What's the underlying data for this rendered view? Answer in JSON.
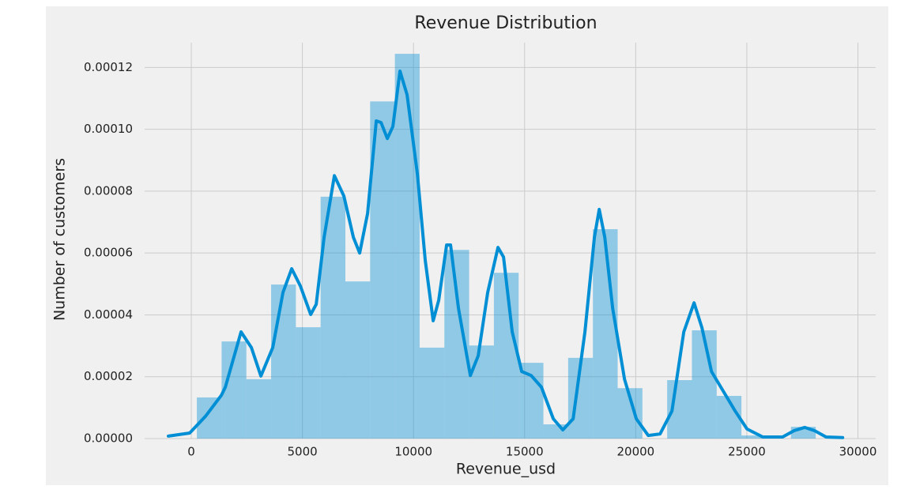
{
  "chart_data": {
    "type": "histogram",
    "title": "Revenue Distribution",
    "x_label": "Revenue_usd",
    "y_label": "Number of customers",
    "bins": [
      250,
      1364,
      2478,
      3592,
      4706,
      5820,
      6934,
      8048,
      9162,
      10276,
      11390,
      12504,
      13618,
      14732,
      15846,
      16960,
      18074,
      19188,
      20302,
      21416,
      22530,
      23644,
      24758,
      25872,
      26986,
      28100
    ],
    "values": [
      1.33e-05,
      3.14e-05,
      1.92e-05,
      4.98e-05,
      3.6e-05,
      7.82e-05,
      5.08e-05,
      0.000109,
      0.0001244,
      2.94e-05,
      6.1e-05,
      3.01e-05,
      5.36e-05,
      2.45e-05,
      4.6e-06,
      2.61e-05,
      6.77e-05,
      1.63e-05,
      0,
      1.89e-05,
      3.5e-05,
      1.38e-05,
      1e-06,
      0,
      3.8e-06
    ],
    "color": "#008fd5",
    "kde": {
      "color": "#008fd5",
      "x": [
        -1032,
        -71,
        640,
        1352,
        1530,
        2241,
        2704,
        3131,
        3664,
        4127,
        4518,
        4909,
        5372,
        5621,
        5977,
        6439,
        6866,
        7293,
        7578,
        7933,
        8325,
        8538,
        8822,
        9071,
        9392,
        9712,
        10174,
        10530,
        10886,
        11135,
        11491,
        11668,
        12024,
        12558,
        12914,
        13340,
        13803,
        14052,
        14444,
        14871,
        15297,
        15760,
        16293,
        16720,
        17183,
        17716,
        18143,
        18357,
        18606,
        18962,
        19496,
        20028,
        20562,
        21096,
        21630,
        22163,
        22626,
        22982,
        23409,
        23943,
        24476,
        25010,
        25722,
        26611,
        27145,
        27607,
        28034,
        28567,
        29314
      ],
      "y": [
        8e-07,
        1.8e-06,
        7.2e-06,
        1.4e-05,
        1.66e-05,
        3.45e-05,
        2.94e-05,
        2.02e-05,
        2.94e-05,
        4.73e-05,
        5.49e-05,
        4.93e-05,
        4.01e-05,
        4.34e-05,
        6.51e-05,
        8.5e-05,
        7.84e-05,
        6.51e-05,
        6e-05,
        7.28e-05,
        0.0001027,
        0.0001022,
        9.7e-05,
        0.0001009,
        0.0001188,
        0.0001111,
        8.56e-05,
        5.75e-05,
        3.81e-05,
        4.47e-05,
        6.26e-05,
        6.26e-05,
        4.21e-05,
        2.04e-05,
        2.68e-05,
        4.73e-05,
        6.18e-05,
        5.87e-05,
        3.45e-05,
        2.17e-05,
        2.04e-05,
        1.66e-05,
        6.4e-06,
        2.8e-06,
        6.4e-06,
        3.45e-05,
        6.51e-05,
        7.41e-05,
        6.51e-05,
        4.21e-05,
        1.92e-05,
        6.4e-06,
        1e-06,
        1.5e-06,
        8.9e-06,
        3.45e-05,
        4.39e-05,
        3.58e-05,
        2.17e-05,
        1.53e-05,
        8.9e-06,
        3.1e-06,
        5e-07,
        5e-07,
        2.6e-06,
        3.6e-06,
        2.6e-06,
        5e-07,
        3e-07
      ]
    },
    "xlim": [
      -2100,
      30800
    ],
    "ylim": [
      0,
      0.000128
    ],
    "xticks": [
      0,
      5000,
      10000,
      15000,
      20000,
      25000,
      30000
    ],
    "yticks": [
      {
        "value": 0,
        "label": "0.00000"
      },
      {
        "value": 2e-05,
        "label": "0.00002"
      },
      {
        "value": 4e-05,
        "label": "0.00004"
      },
      {
        "value": 6e-05,
        "label": "0.00006"
      },
      {
        "value": 8e-05,
        "label": "0.00008"
      },
      {
        "value": 0.0001,
        "label": "0.00010"
      },
      {
        "value": 0.00012,
        "label": "0.00012"
      }
    ],
    "grid": true
  }
}
